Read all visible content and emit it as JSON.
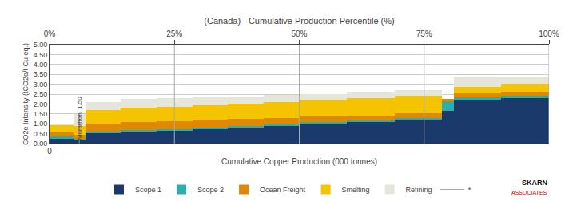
{
  "chart_data": {
    "type": "bar",
    "stacked": true,
    "title": "(Canada) - Cumulative Production Percentile (%)",
    "xlabel": "Cumulative Copper Production (000 tonnes)",
    "ylabel": "CO2e Intensity (tCO2e/t Cu eq.)",
    "x": [
      0,
      4,
      6,
      12,
      18,
      24,
      30,
      36,
      42,
      50,
      58,
      66,
      68,
      76
    ],
    "widths": [
      4,
      2,
      6,
      6,
      6,
      6,
      6,
      6,
      8,
      8,
      8,
      2,
      8,
      8
    ],
    "series": [
      {
        "name": "Scope 1",
        "color": "#1a3a6b",
        "values": [
          0.28,
          0.2,
          0.55,
          0.62,
          0.68,
          0.75,
          0.82,
          0.9,
          1.0,
          1.1,
          1.22,
          1.65,
          2.25,
          2.32
        ]
      },
      {
        "name": "Scope 2",
        "color": "#2baeae",
        "values": [
          0.08,
          0.05,
          0.06,
          0.06,
          0.06,
          0.07,
          0.07,
          0.07,
          0.08,
          0.08,
          0.08,
          0.5,
          0.08,
          0.08
        ]
      },
      {
        "name": "Ocean Freight",
        "color": "#e08800",
        "values": [
          0.22,
          0.2,
          0.4,
          0.42,
          0.4,
          0.38,
          0.35,
          0.32,
          0.28,
          0.25,
          0.22,
          0.12,
          0.2,
          0.22
        ]
      },
      {
        "name": "Smelting",
        "color": "#f5c400",
        "values": [
          0.35,
          0.45,
          0.7,
          0.73,
          0.72,
          0.75,
          0.76,
          0.8,
          0.85,
          0.88,
          0.88,
          0.0,
          0.35,
          0.4
        ]
      },
      {
        "name": "Refining",
        "color": "#e5e5dc",
        "values": [
          0.07,
          0.6,
          0.4,
          0.42,
          0.44,
          0.4,
          0.38,
          0.35,
          0.28,
          0.3,
          0.3,
          0.0,
          0.45,
          0.38
        ]
      }
    ],
    "reference_lines": {
      "name": "*",
      "color": "#aaaaaa"
    },
    "xlim": [
      0,
      84
    ],
    "xticks": [
      0
    ],
    "x2lim": [
      0,
      84
    ],
    "x2ticks": [
      {
        "value": 0,
        "label": "0%"
      },
      {
        "value": 21,
        "label": "25%"
      },
      {
        "value": 42,
        "label": "50%"
      },
      {
        "value": 63,
        "label": "75%"
      },
      {
        "value": 84,
        "label": "100%"
      }
    ],
    "ylim": [
      0,
      5
    ],
    "yticks": [
      {
        "value": 0,
        "label": "0.00"
      },
      {
        "value": 0.5,
        "label": "0.50"
      },
      {
        "value": 1,
        "label": "1.00"
      },
      {
        "value": 1.5,
        "label": "1.50"
      },
      {
        "value": 2,
        "label": "2.00"
      },
      {
        "value": 2.5,
        "label": "2.50"
      },
      {
        "value": 3,
        "label": "3.00"
      },
      {
        "value": 3.5,
        "label": "3.50"
      },
      {
        "value": 4,
        "label": "4.00"
      },
      {
        "value": 4.5,
        "label": "4.50"
      },
      {
        "value": 5,
        "label": "5.00"
      }
    ],
    "grid": true,
    "legend": "bottom",
    "annotations": [
      {
        "text": "Marathon, 1.50",
        "x": 5,
        "y": 1.5
      },
      {
        "text": "SKARN",
        "color": "#111111"
      },
      {
        "text": "ASSOCIATES",
        "color": "#cc0000"
      }
    ]
  }
}
